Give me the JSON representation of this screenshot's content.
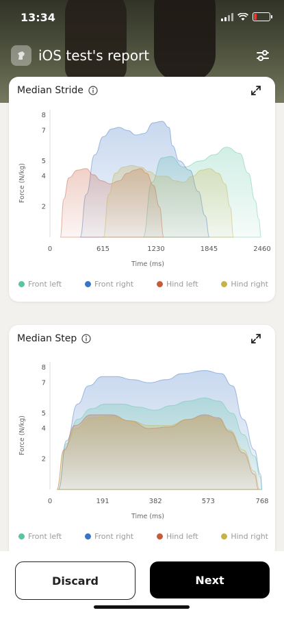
{
  "status_bar": {
    "time": "13:34"
  },
  "header": {
    "title": "iOS test's report"
  },
  "colors": {
    "front_left": "#5cc4a4",
    "front_right": "#3b74c4",
    "hind_left": "#c85a3c",
    "hind_right": "#c6b24a"
  },
  "buttons": {
    "discard": "Discard",
    "next": "Next"
  },
  "chart_data": [
    {
      "type": "area",
      "title": "Median Stride",
      "xlabel": "Time (ms)",
      "ylabel": "Force (N/kg)",
      "xlim": [
        0,
        2460
      ],
      "ylim": [
        0,
        8
      ],
      "x_ticks": [
        "0",
        "615",
        "1230",
        "1845",
        "2460"
      ],
      "y_ticks": [
        "2",
        "4",
        "5",
        "7",
        "8"
      ],
      "legend": [
        "Front left",
        "Front right",
        "Hind left",
        "Hind right"
      ],
      "series": [
        {
          "name": "Front left",
          "color": "#5cc4a4",
          "points": [
            [
              1080,
              0
            ],
            [
              1180,
              3.6
            ],
            [
              1300,
              5.2
            ],
            [
              1400,
              5.3
            ],
            [
              1550,
              4.6
            ],
            [
              1750,
              5.0
            ],
            [
              1900,
              5.4
            ],
            [
              2050,
              5.9
            ],
            [
              2200,
              5.5
            ],
            [
              2300,
              4.2
            ],
            [
              2380,
              2.4
            ],
            [
              2420,
              1.2
            ],
            [
              2450,
              0
            ]
          ]
        },
        {
          "name": "Front right",
          "color": "#3b74c4",
          "points": [
            [
              350,
              0
            ],
            [
              420,
              2.8
            ],
            [
              520,
              5.4
            ],
            [
              620,
              6.6
            ],
            [
              720,
              7.1
            ],
            [
              800,
              7.2
            ],
            [
              900,
              7.0
            ],
            [
              1000,
              6.7
            ],
            [
              1090,
              6.8
            ],
            [
              1200,
              7.5
            ],
            [
              1300,
              7.6
            ],
            [
              1380,
              7.2
            ],
            [
              1420,
              6.0
            ],
            [
              1500,
              5.0
            ],
            [
              1620,
              4.4
            ],
            [
              1720,
              3.0
            ],
            [
              1800,
              1.4
            ],
            [
              1850,
              0
            ]
          ]
        },
        {
          "name": "Hind left",
          "color": "#c85a3c",
          "points": [
            [
              120,
              0
            ],
            [
              160,
              2.5
            ],
            [
              220,
              3.9
            ],
            [
              320,
              4.4
            ],
            [
              420,
              4.5
            ],
            [
              500,
              4.1
            ],
            [
              600,
              3.7
            ],
            [
              700,
              3.5
            ],
            [
              800,
              3.7
            ],
            [
              900,
              4.2
            ],
            [
              980,
              4.4
            ],
            [
              1050,
              4.5
            ],
            [
              1120,
              4.2
            ],
            [
              1200,
              3.4
            ],
            [
              1270,
              2.0
            ],
            [
              1320,
              0
            ]
          ]
        },
        {
          "name": "Hind right",
          "color": "#c6b24a",
          "points": [
            [
              620,
              0
            ],
            [
              680,
              2.8
            ],
            [
              760,
              4.2
            ],
            [
              850,
              4.6
            ],
            [
              950,
              4.7
            ],
            [
              1050,
              4.6
            ],
            [
              1150,
              4.3
            ],
            [
              1250,
              4.0
            ],
            [
              1350,
              4.0
            ],
            [
              1450,
              3.7
            ],
            [
              1550,
              3.6
            ],
            [
              1650,
              4.0
            ],
            [
              1760,
              4.4
            ],
            [
              1850,
              4.5
            ],
            [
              1950,
              4.2
            ],
            [
              2030,
              3.5
            ],
            [
              2090,
              2.0
            ],
            [
              2130,
              0
            ]
          ]
        }
      ]
    },
    {
      "type": "area",
      "title": "Median Step",
      "xlabel": "Time (ms)",
      "ylabel": "Force (N/kg)",
      "xlim": [
        0,
        768
      ],
      "ylim": [
        0,
        8
      ],
      "x_ticks": [
        "0",
        "191",
        "382",
        "573",
        "768"
      ],
      "y_ticks": [
        "2",
        "4",
        "5",
        "7",
        "8"
      ],
      "legend": [
        "Front left",
        "Front right",
        "Hind left",
        "Hind right"
      ],
      "series": [
        {
          "name": "Front right",
          "color": "#3b74c4",
          "points": [
            [
              30,
              0
            ],
            [
              60,
              3.2
            ],
            [
              100,
              5.6
            ],
            [
              140,
              6.8
            ],
            [
              190,
              7.4
            ],
            [
              240,
              7.4
            ],
            [
              300,
              7.2
            ],
            [
              360,
              7.0
            ],
            [
              420,
              7.2
            ],
            [
              480,
              7.6
            ],
            [
              560,
              7.8
            ],
            [
              620,
              7.6
            ],
            [
              660,
              6.8
            ],
            [
              700,
              4.6
            ],
            [
              740,
              2.6
            ],
            [
              762,
              1.0
            ],
            [
              768,
              0
            ]
          ]
        },
        {
          "name": "Front left",
          "color": "#5cc4a4",
          "points": [
            [
              30,
              0
            ],
            [
              60,
              3.0
            ],
            [
              100,
              4.6
            ],
            [
              150,
              5.3
            ],
            [
              200,
              5.6
            ],
            [
              260,
              5.6
            ],
            [
              320,
              5.4
            ],
            [
              380,
              5.2
            ],
            [
              440,
              5.5
            ],
            [
              500,
              5.8
            ],
            [
              560,
              6.0
            ],
            [
              610,
              5.8
            ],
            [
              660,
              5.0
            ],
            [
              700,
              3.6
            ],
            [
              740,
              2.2
            ],
            [
              762,
              0.8
            ],
            [
              768,
              0
            ]
          ]
        },
        {
          "name": "Hind left",
          "color": "#c85a3c",
          "points": [
            [
              25,
              0
            ],
            [
              50,
              2.6
            ],
            [
              90,
              4.2
            ],
            [
              150,
              4.9
            ],
            [
              220,
              4.9
            ],
            [
              290,
              4.5
            ],
            [
              360,
              4.0
            ],
            [
              430,
              4.1
            ],
            [
              500,
              4.6
            ],
            [
              560,
              4.9
            ],
            [
              610,
              4.7
            ],
            [
              650,
              3.8
            ],
            [
              700,
              2.4
            ],
            [
              740,
              1.0
            ],
            [
              755,
              0
            ]
          ]
        },
        {
          "name": "Hind right",
          "color": "#c6b24a",
          "points": [
            [
              25,
              0
            ],
            [
              50,
              2.5
            ],
            [
              90,
              4.0
            ],
            [
              150,
              4.7
            ],
            [
              220,
              4.8
            ],
            [
              290,
              4.5
            ],
            [
              360,
              4.2
            ],
            [
              430,
              4.2
            ],
            [
              500,
              4.6
            ],
            [
              560,
              4.8
            ],
            [
              610,
              4.6
            ],
            [
              650,
              3.9
            ],
            [
              700,
              2.6
            ],
            [
              740,
              1.2
            ],
            [
              760,
              0
            ]
          ]
        }
      ]
    }
  ]
}
